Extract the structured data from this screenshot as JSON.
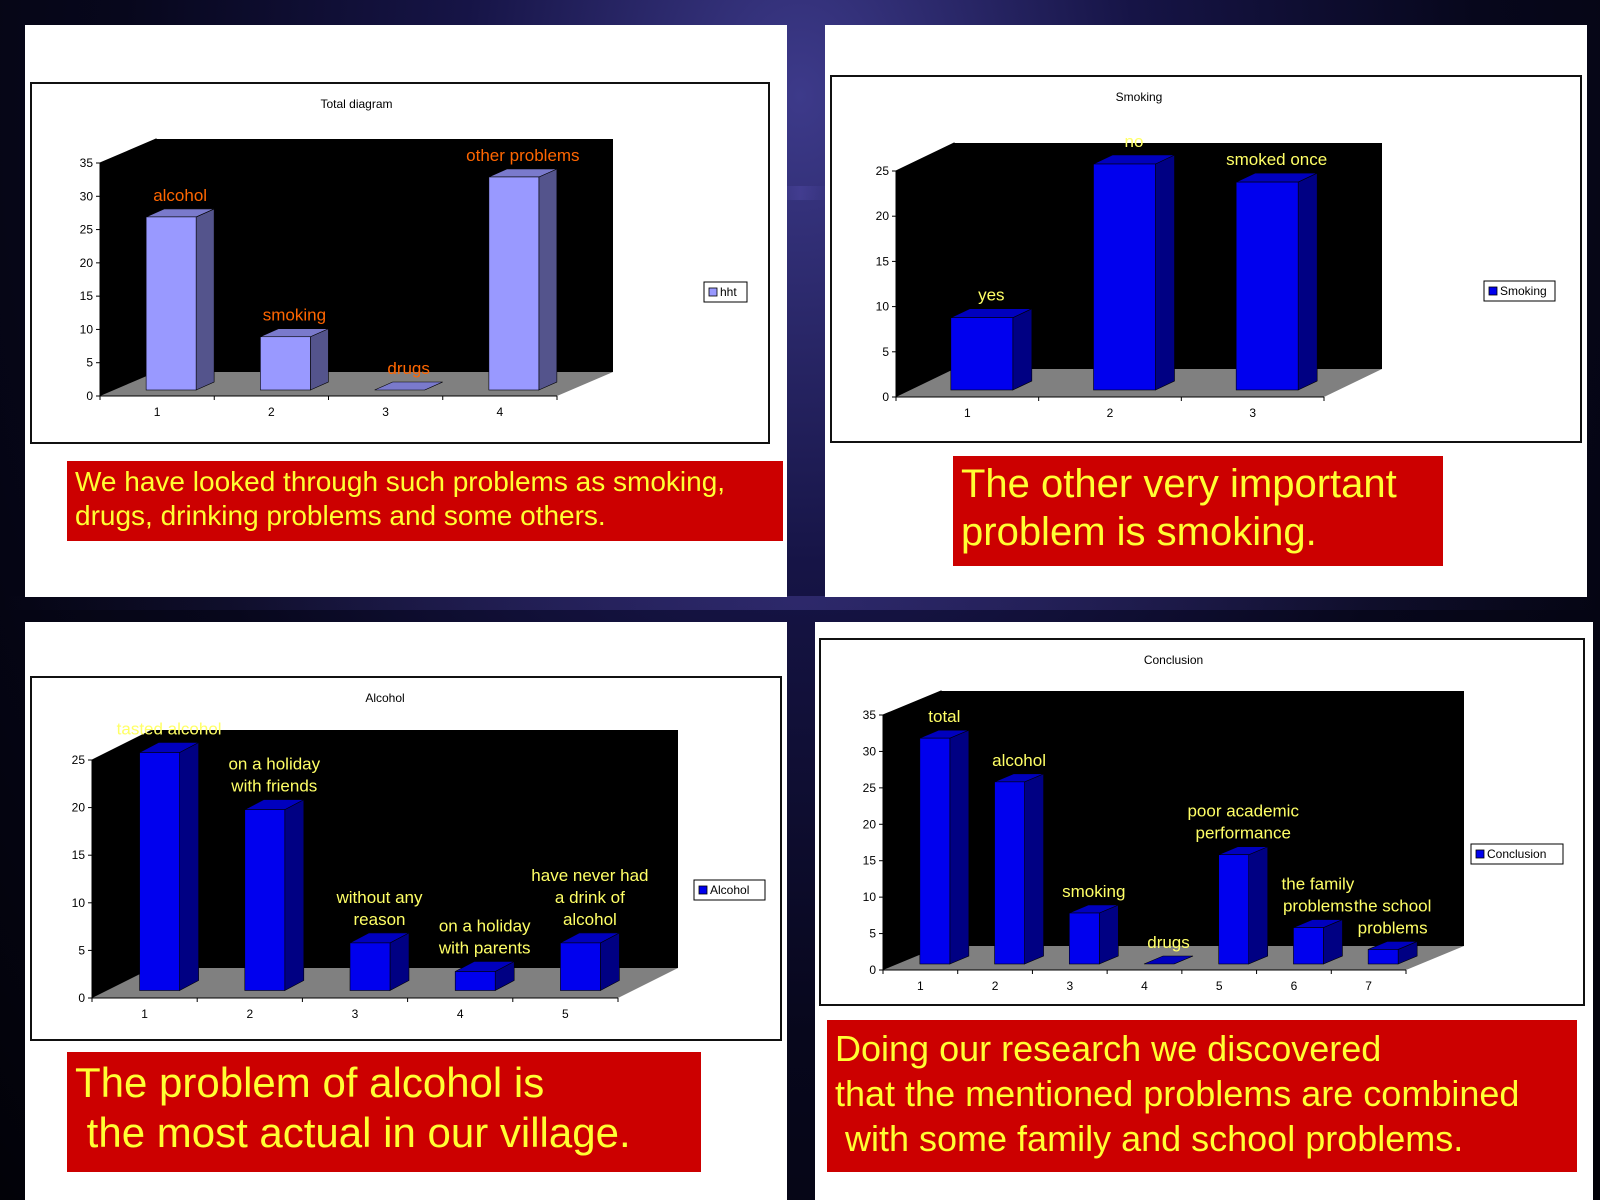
{
  "colors": {
    "panel_bg": "#ffffff",
    "caption_bg": "#cc0000",
    "caption_text": "#ffff33",
    "plot_bg": "#000000",
    "floor": "#808080",
    "bar_light": "#9999ff",
    "bar_blue": "#0000ee",
    "label_orange": "#ff6600",
    "label_yellow": "#ffff66"
  },
  "captions": {
    "total": "We have looked through such problems as smoking,\ndrugs, drinking problems and some others.",
    "smoking": "The other very important\nproblem is smoking.",
    "alcohol": "The problem of alcohol is\n the most actual in our village.",
    "conclusion": "Doing our research we discovered\nthat the mentioned problems are combined\n with some family and school problems."
  },
  "chart_data": [
    {
      "type": "bar",
      "title": "Total diagram",
      "legend": "hht",
      "categories": [
        "1",
        "2",
        "3",
        "4"
      ],
      "values": [
        26,
        8,
        0,
        32
      ],
      "point_labels": [
        "alcohol",
        "smoking",
        "drugs",
        "other problems"
      ],
      "ylim": [
        0,
        35
      ],
      "yticks": [
        "0",
        "5",
        "10",
        "15",
        "20",
        "25",
        "30",
        "35"
      ],
      "ystep": 5,
      "grid": false,
      "legend_position": "right",
      "bar_color": "light-purple",
      "label_color": "orange"
    },
    {
      "type": "bar",
      "title": "Smoking",
      "legend": "Smoking",
      "categories": [
        "1",
        "2",
        "3"
      ],
      "values": [
        8,
        25,
        23
      ],
      "point_labels": [
        "yes",
        "no",
        "smoked once"
      ],
      "ylim": [
        0,
        25
      ],
      "yticks": [
        "0",
        "5",
        "10",
        "15",
        "20",
        "25"
      ],
      "ystep": 5,
      "grid": false,
      "legend_position": "right",
      "bar_color": "blue",
      "label_color": "yellow"
    },
    {
      "type": "bar",
      "title": "Alcohol",
      "legend": "Alcohol",
      "categories": [
        "1",
        "2",
        "3",
        "4",
        "5"
      ],
      "values": [
        25,
        19,
        5,
        2,
        5
      ],
      "point_labels": [
        "tasted alcohol",
        "on a holiday\nwith friends",
        "without any\nreason",
        "on a holiday\nwith parents",
        "have never had\na drink of\nalcohol"
      ],
      "ylim": [
        0,
        25
      ],
      "yticks": [
        "0",
        "5",
        "10",
        "15",
        "20",
        "25"
      ],
      "ystep": 5,
      "grid": false,
      "legend_position": "right",
      "bar_color": "blue",
      "label_color": "yellow"
    },
    {
      "type": "bar",
      "title": "Conclusion",
      "legend": "Conclusion",
      "categories": [
        "1",
        "2",
        "3",
        "4",
        "5",
        "6",
        "7"
      ],
      "values": [
        31,
        25,
        7,
        0,
        15,
        5,
        2
      ],
      "point_labels": [
        "total",
        "alcohol",
        "smoking",
        "drugs",
        "poor academic\nperformance",
        "the family\nproblems",
        "the school\nproblems"
      ],
      "ylim": [
        0,
        35
      ],
      "yticks": [
        "0",
        "5",
        "10",
        "15",
        "20",
        "25",
        "30",
        "35"
      ],
      "ystep": 5,
      "grid": false,
      "legend_position": "right",
      "bar_color": "blue",
      "label_color": "yellow"
    }
  ]
}
